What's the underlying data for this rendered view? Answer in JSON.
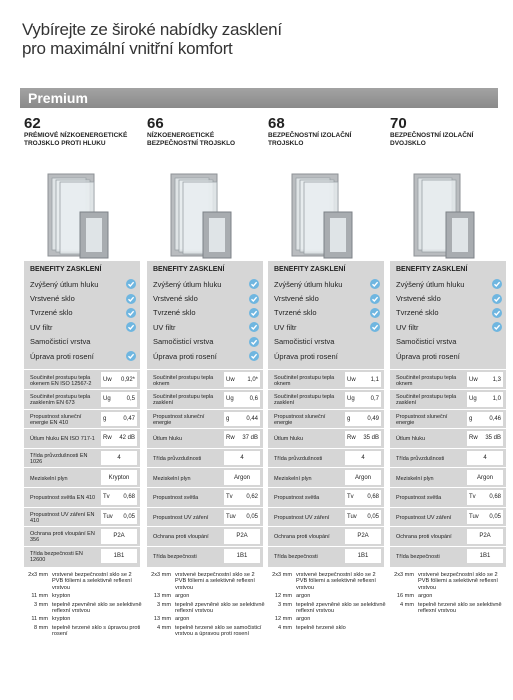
{
  "header": {
    "title_lines": [
      "Vybírejte ze široké nabídky zasklení",
      "pro maximální vnitřní komfort"
    ]
  },
  "banner": "Premium",
  "products": [
    {
      "number": "62",
      "name": "PRÉMIOVÉ NÍZKOENERGETICKÉ TROJSKLO PROTI HLUKU",
      "benefits_title": "BENEFITY ZASKLENÍ",
      "benefits": [
        {
          "label": "Zvýšený útlum hluku",
          "checked": true
        },
        {
          "label": "Vrstvené sklo",
          "checked": true
        },
        {
          "label": "Tvrzené sklo",
          "checked": true
        },
        {
          "label": "UV filtr",
          "checked": true
        },
        {
          "label": "Samočisticí vrstva",
          "checked": false
        },
        {
          "label": "Úprava proti rosení",
          "checked": true
        }
      ],
      "specs": [
        {
          "label": "Součinitel prostupu tepla okenem EN ISO 12567-2",
          "symbol": "Uw",
          "value": "0,92*"
        },
        {
          "label": "Součinitel prostupu tepla zasklením EN 673",
          "symbol": "Ug",
          "value": "0,5"
        },
        {
          "label": "Propustnost sluneční energie EN 410",
          "symbol": "g",
          "value": "0,47"
        },
        {
          "label": "Útlum hluku EN ISO 717-1",
          "symbol": "Rw",
          "value": "42 dB"
        },
        {
          "label": "Třída průvzdušnosti EN 1026",
          "value": "4"
        },
        {
          "label": "Meziskelní plyn",
          "value": "Krypton"
        },
        {
          "label": "Propustnost světla EN 410",
          "symbol": "Tv",
          "value": "0,68"
        },
        {
          "label": "Propustnost UV záření EN 410",
          "symbol": "Tuv",
          "value": "0,05"
        },
        {
          "label": "Ochrana proti vloupání EN 356",
          "value": "P2A"
        },
        {
          "label": "Třída bezpečnosti EN 12600",
          "value": "1B1"
        }
      ],
      "composition": [
        {
          "thickness": "2x3 mm",
          "description": "vrstvené bezpečnostní sklo se 2 PVB fóliemi a selektivně reflexní vrstvou"
        },
        {
          "thickness": "11 mm",
          "description": "krypton"
        },
        {
          "thickness": "3 mm",
          "description": "tepelně zpevněné sklo se selektivně reflexní vrstvou"
        },
        {
          "thickness": "11 mm",
          "description": "krypton"
        },
        {
          "thickness": "8 mm",
          "description": "tepelně tvrzené sklo s úpravou proti rosení"
        }
      ]
    },
    {
      "number": "66",
      "name": "NÍZKOENERGETICKÉ BEZPEČNOSTNÍ TROJSKLO",
      "benefits_title": "BENEFITY ZASKLENÍ",
      "benefits": [
        {
          "label": "Zvýšený útlum hluku",
          "checked": true
        },
        {
          "label": "Vrstvené sklo",
          "checked": true
        },
        {
          "label": "Tvrzené sklo",
          "checked": true
        },
        {
          "label": "UV filtr",
          "checked": true
        },
        {
          "label": "Samočisticí vrstva",
          "checked": true
        },
        {
          "label": "Úprava proti rosení",
          "checked": true
        }
      ],
      "specs": [
        {
          "label": "Součinitel prostupu tepla oknem",
          "symbol": "Uw",
          "value": "1,0*"
        },
        {
          "label": "Součinitel prostupu tepla zasklení",
          "symbol": "Ug",
          "value": "0,6"
        },
        {
          "label": "Propustnost sluneční energie",
          "symbol": "g",
          "value": "0,44"
        },
        {
          "label": "Útlum hluku",
          "symbol": "Rw",
          "value": "37 dB"
        },
        {
          "label": "Třída průvzdušnosti",
          "value": "4"
        },
        {
          "label": "Meziskelní plyn",
          "value": "Argon"
        },
        {
          "label": "Propustnost světla",
          "symbol": "Tv",
          "value": "0,62"
        },
        {
          "label": "Propustnost UV záření",
          "symbol": "Tuv",
          "value": "0,05"
        },
        {
          "label": "Ochrana proti vloupání",
          "value": "P2A"
        },
        {
          "label": "Třída bezpečnosti",
          "value": "1B1"
        }
      ],
      "composition": [
        {
          "thickness": "2x3 mm",
          "description": "vrstvené bezpečnostní sklo se 2 PVB fóliemi a selektivně reflexní vrstvou"
        },
        {
          "thickness": "13 mm",
          "description": "argon"
        },
        {
          "thickness": "3 mm",
          "description": "tepelně zpevněné sklo se selektivně reflexní vrstvou"
        },
        {
          "thickness": "13 mm",
          "description": "argon"
        },
        {
          "thickness": "4 mm",
          "description": "tepelně tvrzené sklo se samočisticí vrstvou a úpravou proti rosení"
        }
      ]
    },
    {
      "number": "68",
      "name": "BEZPEČNOSTNÍ IZOLAČNÍ TROJSKLO",
      "benefits_title": "BENEFITY ZASKLENÍ",
      "benefits": [
        {
          "label": "Zvýšený útlum hluku",
          "checked": true
        },
        {
          "label": "Vrstvené sklo",
          "checked": true
        },
        {
          "label": "Tvrzené sklo",
          "checked": true
        },
        {
          "label": "UV filtr",
          "checked": true
        },
        {
          "label": "Samočisticí vrstva",
          "checked": false
        },
        {
          "label": "Úprava proti rosení",
          "checked": false
        }
      ],
      "specs": [
        {
          "label": "Součinitel prostupu tepla oknem",
          "symbol": "Uw",
          "value": "1,1"
        },
        {
          "label": "Součinitel prostupu tepla zasklení",
          "symbol": "Ug",
          "value": "0,7"
        },
        {
          "label": "Propustnost sluneční energie",
          "symbol": "g",
          "value": "0,49"
        },
        {
          "label": "Útlum hluku",
          "symbol": "Rw",
          "value": "35 dB"
        },
        {
          "label": "Třída průvzdušnosti",
          "value": "4"
        },
        {
          "label": "Meziskelní plyn",
          "value": "Argon"
        },
        {
          "label": "Propustnost světla",
          "symbol": "Tv",
          "value": "0,68"
        },
        {
          "label": "Propustnost UV záření",
          "symbol": "Tuv",
          "value": "0,05"
        },
        {
          "label": "Ochrana proti vloupání",
          "value": "P2A"
        },
        {
          "label": "Třída bezpečnosti",
          "value": "1B1"
        }
      ],
      "composition": [
        {
          "thickness": "2x3 mm",
          "description": "vrstvené bezpečnostní sklo se 2 PVB fóliemi a selektivně reflexní vrstvou"
        },
        {
          "thickness": "12 mm",
          "description": "argon"
        },
        {
          "thickness": "3 mm",
          "description": "tepelně zpevněné sklo se selektivně reflexní vrstvou"
        },
        {
          "thickness": "12 mm",
          "description": "argon"
        },
        {
          "thickness": "4 mm",
          "description": "tepelně tvrzené sklo"
        }
      ]
    },
    {
      "number": "70",
      "name": "BEZPEČNOSTNÍ IZOLAČNÍ DVOJSKLO",
      "benefits_title": "BENEFITY ZASKLENÍ",
      "benefits": [
        {
          "label": "Zvýšený útlum hluku",
          "checked": true
        },
        {
          "label": "Vrstvené sklo",
          "checked": true
        },
        {
          "label": "Tvrzené sklo",
          "checked": true
        },
        {
          "label": "UV filtr",
          "checked": true
        },
        {
          "label": "Samočisticí vrstva",
          "checked": false
        },
        {
          "label": "Úprava proti rosení",
          "checked": false
        }
      ],
      "specs": [
        {
          "label": "Součinitel prostupu tepla oknem",
          "symbol": "Uw",
          "value": "1,3"
        },
        {
          "label": "Součinitel prostupu tepla zasklení",
          "symbol": "Ug",
          "value": "1,0"
        },
        {
          "label": "Propustnost sluneční energie",
          "symbol": "g",
          "value": "0,46"
        },
        {
          "label": "Útlum hluku",
          "symbol": "Rw",
          "value": "35 dB"
        },
        {
          "label": "Třída průvzdušnosti",
          "value": "4"
        },
        {
          "label": "Meziskelní plyn",
          "value": "Argon"
        },
        {
          "label": "Propustnost světla",
          "symbol": "Tv",
          "value": "0,68"
        },
        {
          "label": "Propustnost UV záření",
          "symbol": "Tuv",
          "value": "0,05"
        },
        {
          "label": "Ochrana proti vloupání",
          "value": "P2A"
        },
        {
          "label": "Třída bezpečnosti",
          "value": "1B1"
        }
      ],
      "composition": [
        {
          "thickness": "2x3 mm",
          "description": "vrstvené bezpečnostní sklo se 2 PVB fóliemi a selektivně reflexní vrstvou"
        },
        {
          "thickness": "16 mm",
          "description": "argon"
        },
        {
          "thickness": "4 mm",
          "description": "tepelně tvrzené sklo se selektivně reflexní vrstvou"
        }
      ]
    }
  ]
}
